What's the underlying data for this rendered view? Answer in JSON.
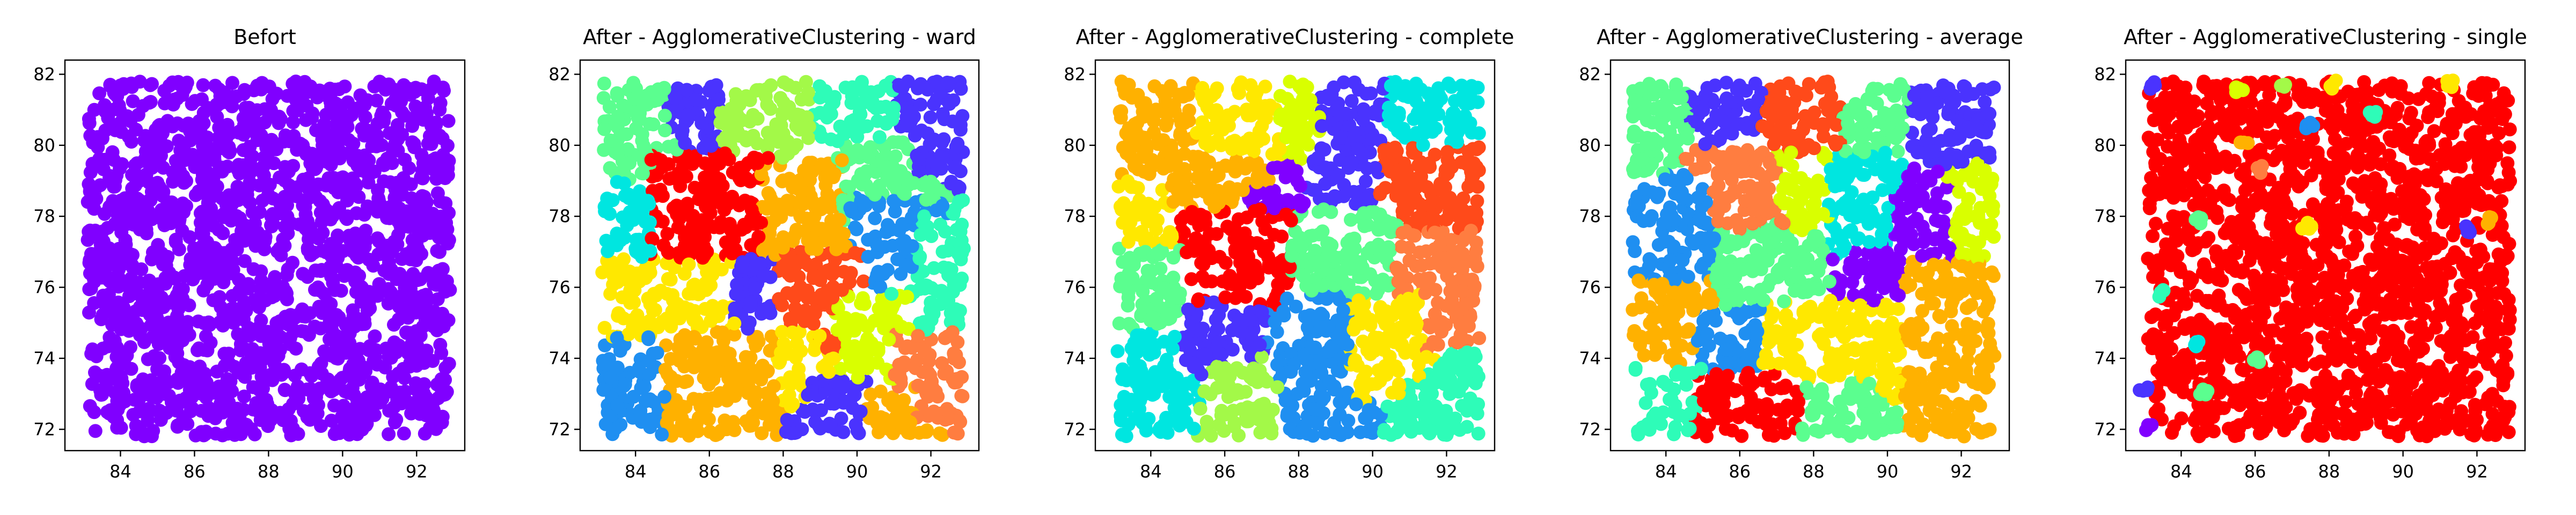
{
  "figure": {
    "palette": [
      "#8000ff",
      "#4a33fe",
      "#1f8ff1",
      "#00e6e0",
      "#2efcb8",
      "#5bfe8f",
      "#a3f948",
      "#d9ff00",
      "#ffe800",
      "#ffb100",
      "#ff7d40",
      "#ff4a1a",
      "#ff0000"
    ]
  },
  "chart_data": [
    {
      "type": "scatter",
      "title": "Befort",
      "xlabel": "",
      "ylabel": "",
      "xlim": [
        82.5,
        93.3
      ],
      "ylim": [
        71.4,
        82.4
      ],
      "xticks": [
        84,
        86,
        88,
        90,
        92
      ],
      "yticks": [
        72,
        74,
        76,
        78,
        80,
        82
      ],
      "x_range": [
        83.1,
        92.9
      ],
      "y_range": [
        71.8,
        81.8
      ],
      "grid": false,
      "clusters": [
        {
          "color": "#8000ff",
          "region": [
            83.1,
            92.9,
            71.8,
            81.8
          ]
        }
      ]
    },
    {
      "type": "scatter",
      "title": "After - AgglomerativeClustering - ward",
      "xlabel": "",
      "ylabel": "",
      "xlim": [
        82.5,
        93.3
      ],
      "ylim": [
        71.4,
        82.4
      ],
      "xticks": [
        84,
        86,
        88,
        90,
        92
      ],
      "yticks": [
        72,
        74,
        76,
        78,
        80,
        82
      ],
      "x_range": [
        83.1,
        92.9
      ],
      "y_range": [
        71.8,
        81.8
      ],
      "grid": false,
      "clusters": [
        {
          "color": "#5bfe8f",
          "region": [
            83.1,
            85.3,
            78.6,
            81.8
          ]
        },
        {
          "color": "#4a33fe",
          "region": [
            84.8,
            86.6,
            80.2,
            81.8
          ]
        },
        {
          "color": "#a3f948",
          "region": [
            86.3,
            89.2,
            79.4,
            81.8
          ]
        },
        {
          "color": "#2efcb8",
          "region": [
            88.8,
            91.0,
            80.0,
            81.8
          ]
        },
        {
          "color": "#4a33fe",
          "region": [
            91.0,
            92.9,
            79.2,
            81.8
          ]
        },
        {
          "color": "#00e6e0",
          "region": [
            83.1,
            84.6,
            76.2,
            79.0
          ]
        },
        {
          "color": "#ff0000",
          "region": [
            84.4,
            87.6,
            76.4,
            79.8
          ]
        },
        {
          "color": "#ffb100",
          "region": [
            87.4,
            89.8,
            76.4,
            79.6
          ]
        },
        {
          "color": "#5bfe8f",
          "region": [
            89.6,
            91.6,
            77.8,
            80.2
          ]
        },
        {
          "color": "#1f8ff1",
          "region": [
            89.8,
            91.8,
            76.2,
            78.6
          ]
        },
        {
          "color": "#2efcb8",
          "region": [
            91.6,
            92.9,
            74.6,
            78.0
          ]
        },
        {
          "color": "#ffe800",
          "region": [
            83.1,
            86.8,
            74.2,
            76.8
          ]
        },
        {
          "color": "#4a33fe",
          "region": [
            86.6,
            88.4,
            75.0,
            76.8
          ]
        },
        {
          "color": "#ff4a1a",
          "region": [
            87.8,
            90.2,
            74.2,
            77.0
          ]
        },
        {
          "color": "#d9ff00",
          "region": [
            89.4,
            91.4,
            73.0,
            75.8
          ]
        },
        {
          "color": "#ff7d40",
          "region": [
            91.0,
            92.9,
            72.2,
            74.8
          ]
        },
        {
          "color": "#1f8ff1",
          "region": [
            83.1,
            85.0,
            71.8,
            74.6
          ]
        },
        {
          "color": "#ffb100",
          "region": [
            84.8,
            88.0,
            71.8,
            74.8
          ]
        },
        {
          "color": "#ffe800",
          "region": [
            87.8,
            89.0,
            72.6,
            74.8
          ]
        },
        {
          "color": "#4a33fe",
          "region": [
            88.6,
            90.4,
            71.8,
            73.4
          ]
        },
        {
          "color": "#ffb100",
          "region": [
            90.2,
            91.6,
            71.8,
            73.2
          ]
        }
      ]
    },
    {
      "type": "scatter",
      "title": "After - AgglomerativeClustering - complete",
      "xlabel": "",
      "ylabel": "",
      "xlim": [
        82.5,
        93.3
      ],
      "ylim": [
        71.4,
        82.4
      ],
      "xticks": [
        84,
        86,
        88,
        90,
        92
      ],
      "yticks": [
        72,
        74,
        76,
        78,
        80,
        82
      ],
      "x_range": [
        83.1,
        92.9
      ],
      "y_range": [
        71.8,
        81.8
      ],
      "grid": false,
      "clusters": [
        {
          "color": "#ffb100",
          "region": [
            83.1,
            85.4,
            78.4,
            81.8
          ]
        },
        {
          "color": "#ffe800",
          "region": [
            85.2,
            87.6,
            79.6,
            81.8
          ]
        },
        {
          "color": "#d9ff00",
          "region": [
            87.4,
            89.0,
            80.2,
            81.8
          ]
        },
        {
          "color": "#4a33fe",
          "region": [
            88.6,
            90.6,
            79.4,
            81.8
          ]
        },
        {
          "color": "#00e6e0",
          "region": [
            90.4,
            92.9,
            79.8,
            81.8
          ]
        },
        {
          "color": "#ffb100",
          "region": [
            85.0,
            87.2,
            77.8,
            79.8
          ]
        },
        {
          "color": "#8000ff",
          "region": [
            86.6,
            88.2,
            77.4,
            78.8
          ]
        },
        {
          "color": "#4a33fe",
          "region": [
            88.2,
            90.4,
            77.6,
            79.6
          ]
        },
        {
          "color": "#ff4a1a",
          "region": [
            90.2,
            92.9,
            77.2,
            80.0
          ]
        },
        {
          "color": "#ffe800",
          "region": [
            83.1,
            84.4,
            76.8,
            79.0
          ]
        },
        {
          "color": "#5bfe8f",
          "region": [
            83.1,
            85.2,
            74.4,
            77.2
          ]
        },
        {
          "color": "#ff0000",
          "region": [
            84.8,
            88.0,
            75.4,
            78.2
          ]
        },
        {
          "color": "#5bfe8f",
          "region": [
            87.8,
            90.8,
            75.6,
            78.2
          ]
        },
        {
          "color": "#ff7d40",
          "region": [
            90.6,
            92.9,
            74.2,
            77.6
          ]
        },
        {
          "color": "#00e6e0",
          "region": [
            83.1,
            85.0,
            71.8,
            74.8
          ]
        },
        {
          "color": "#4a33fe",
          "region": [
            84.8,
            86.8,
            73.4,
            75.6
          ]
        },
        {
          "color": "#a3f948",
          "region": [
            85.6,
            87.8,
            71.8,
            73.8
          ]
        },
        {
          "color": "#1f8ff1",
          "region": [
            87.4,
            89.6,
            73.2,
            75.8
          ]
        },
        {
          "color": "#1f8ff1",
          "region": [
            87.6,
            89.8,
            71.8,
            73.4
          ]
        },
        {
          "color": "#ffe800",
          "region": [
            89.4,
            91.4,
            72.8,
            75.8
          ]
        },
        {
          "color": "#2efcb8",
          "region": [
            90.8,
            92.9,
            71.8,
            73.4
          ]
        }
      ]
    },
    {
      "type": "scatter",
      "title": "After - AgglomerativeClustering - average",
      "xlabel": "",
      "ylabel": "",
      "xlim": [
        82.5,
        93.3
      ],
      "ylim": [
        71.4,
        82.4
      ],
      "xticks": [
        84,
        86,
        88,
        90,
        92
      ],
      "yticks": [
        72,
        74,
        76,
        78,
        80,
        82
      ],
      "x_range": [
        83.1,
        92.9
      ],
      "y_range": [
        71.8,
        81.8
      ],
      "grid": false,
      "clusters": [
        {
          "color": "#5bfe8f",
          "region": [
            83.1,
            84.8,
            79.2,
            81.8
          ]
        },
        {
          "color": "#4a33fe",
          "region": [
            84.6,
            86.8,
            79.8,
            81.8
          ]
        },
        {
          "color": "#ff4a1a",
          "region": [
            86.6,
            89.0,
            79.6,
            81.8
          ]
        },
        {
          "color": "#5bfe8f",
          "region": [
            88.8,
            90.8,
            79.6,
            81.8
          ]
        },
        {
          "color": "#4a33fe",
          "region": [
            90.6,
            92.9,
            79.6,
            81.8
          ]
        },
        {
          "color": "#ff7d40",
          "region": [
            84.4,
            87.2,
            77.8,
            80.0
          ]
        },
        {
          "color": "#d9ff00",
          "region": [
            87.0,
            88.6,
            78.0,
            79.8
          ]
        },
        {
          "color": "#00e6e0",
          "region": [
            88.4,
            90.4,
            77.0,
            79.8
          ]
        },
        {
          "color": "#8000ff",
          "region": [
            90.2,
            92.0,
            77.0,
            79.0
          ]
        },
        {
          "color": "#d9ff00",
          "region": [
            91.8,
            92.9,
            77.0,
            79.4
          ]
        },
        {
          "color": "#1f8ff1",
          "region": [
            83.1,
            85.2,
            76.2,
            79.2
          ]
        },
        {
          "color": "#5bfe8f",
          "region": [
            85.4,
            88.2,
            75.4,
            77.6
          ]
        },
        {
          "color": "#8000ff",
          "region": [
            89.2,
            91.0,
            75.0,
            77.2
          ]
        },
        {
          "color": "#ffb100",
          "region": [
            83.1,
            85.2,
            73.8,
            76.2
          ]
        },
        {
          "color": "#1f8ff1",
          "region": [
            84.8,
            86.8,
            73.4,
            75.4
          ]
        },
        {
          "color": "#ffe800",
          "region": [
            86.6,
            90.6,
            72.8,
            75.6
          ]
        },
        {
          "color": "#ffb100",
          "region": [
            90.4,
            92.9,
            71.8,
            76.8
          ]
        },
        {
          "color": "#2efcb8",
          "region": [
            83.1,
            85.0,
            71.8,
            73.8
          ]
        },
        {
          "color": "#ff0000",
          "region": [
            84.8,
            87.6,
            71.8,
            73.6
          ]
        },
        {
          "color": "#5bfe8f",
          "region": [
            87.6,
            89.8,
            71.8,
            73.4
          ]
        }
      ]
    },
    {
      "type": "scatter",
      "title": "After - AgglomerativeClustering - single",
      "xlabel": "",
      "ylabel": "",
      "xlim": [
        82.5,
        93.3
      ],
      "ylim": [
        71.4,
        82.4
      ],
      "xticks": [
        84,
        86,
        88,
        90,
        92
      ],
      "yticks": [
        72,
        74,
        76,
        78,
        80,
        82
      ],
      "x_range": [
        83.1,
        92.9
      ],
      "y_range": [
        71.8,
        81.8
      ],
      "grid": false,
      "clusters": [
        {
          "color": "#ff0000",
          "region": [
            83.1,
            92.9,
            71.8,
            81.8
          ]
        }
      ],
      "outliers": [
        {
          "x": 83.2,
          "y": 81.7,
          "color": "#4a33fe"
        },
        {
          "x": 85.6,
          "y": 81.6,
          "color": "#d9ff00"
        },
        {
          "x": 86.8,
          "y": 81.6,
          "color": "#a3f948"
        },
        {
          "x": 88.1,
          "y": 81.7,
          "color": "#ffe800"
        },
        {
          "x": 91.3,
          "y": 81.7,
          "color": "#ffe800"
        },
        {
          "x": 87.5,
          "y": 80.6,
          "color": "#1f8ff1"
        },
        {
          "x": 89.2,
          "y": 80.9,
          "color": "#2efcb8"
        },
        {
          "x": 85.7,
          "y": 80.1,
          "color": "#ffb100"
        },
        {
          "x": 86.1,
          "y": 79.3,
          "color": "#ff7d40"
        },
        {
          "x": 84.5,
          "y": 77.9,
          "color": "#5bfe8f"
        },
        {
          "x": 87.4,
          "y": 77.7,
          "color": "#ffe800"
        },
        {
          "x": 91.8,
          "y": 77.6,
          "color": "#4a33fe"
        },
        {
          "x": 92.4,
          "y": 77.9,
          "color": "#ffb100"
        },
        {
          "x": 83.5,
          "y": 75.8,
          "color": "#2efcb8"
        },
        {
          "x": 84.4,
          "y": 74.4,
          "color": "#00e6e0"
        },
        {
          "x": 86.0,
          "y": 74.0,
          "color": "#5bfe8f"
        },
        {
          "x": 84.6,
          "y": 73.0,
          "color": "#5bfe8f"
        },
        {
          "x": 83.0,
          "y": 73.1,
          "color": "#4a33fe"
        },
        {
          "x": 83.1,
          "y": 72.0,
          "color": "#8000ff"
        }
      ]
    }
  ]
}
